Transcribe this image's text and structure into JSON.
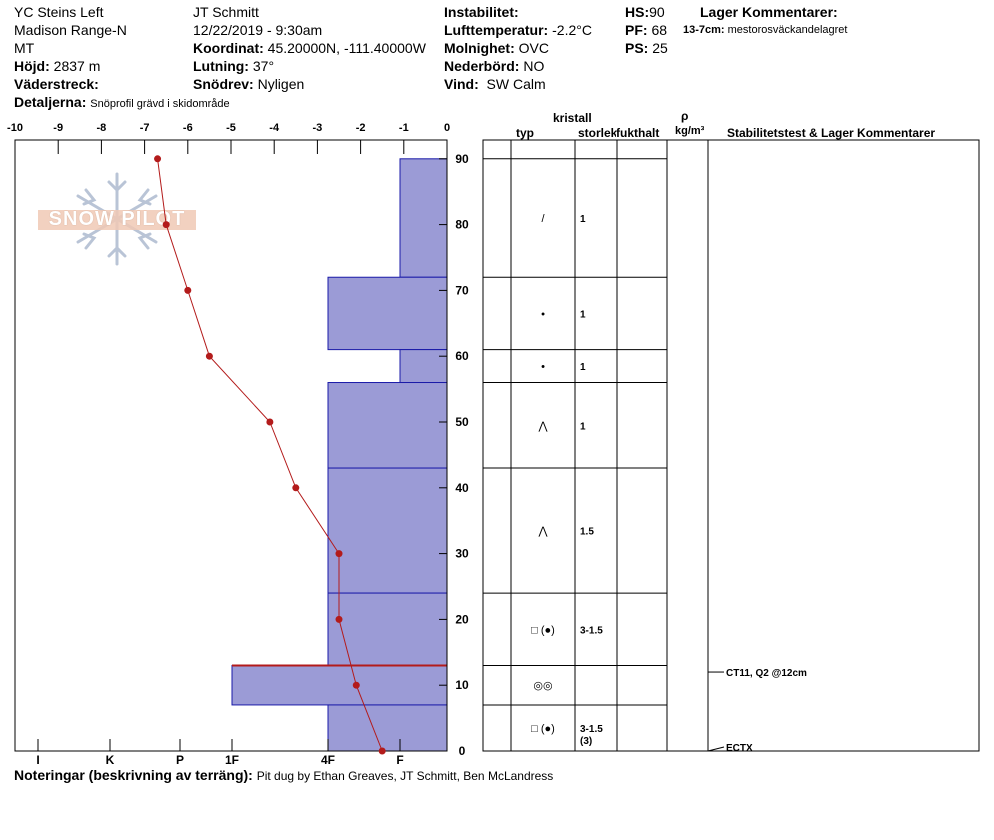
{
  "header": {
    "location": "YC Steins Left",
    "range": "Madison Range-N",
    "state": "MT",
    "elevation_label": "Höjd:",
    "elevation": "2837 m",
    "aspect_label": "Väderstreck:",
    "aspect": "",
    "details_label": "Detaljerna:",
    "details": "Snöprofil grävd i skidområde",
    "observer": "JT Schmitt",
    "datetime": "12/22/2019 - 9:30am",
    "coord_label": "Koordinat:",
    "coord": "45.20000N, -111.40000W",
    "slope_label": "Lutning:",
    "slope": "37°",
    "drift_label": "Snödrev:",
    "drift": "Nyligen",
    "instability_label": "Instabilitet:",
    "instability": "",
    "airtemp_label": "Lufttemperatur:",
    "airtemp": "-2.2°C",
    "sky_label": "Molnighet:",
    "sky": "OVC",
    "precip_label": "Nederbörd:",
    "precip": "NO",
    "wind_label": "Vind:",
    "wind": "SW Calm",
    "hs_label": "HS:",
    "hs": "90",
    "pf_label": "PF:",
    "pf": "68",
    "ps_label": "PS:",
    "ps": "25",
    "layer_comments_label": "Lager Kommentarer:",
    "layer_comment_key": "13-7cm:",
    "layer_comment_text": "mestorosväckandelagret"
  },
  "footer": {
    "notes_label": "Noteringar (beskrivning av terräng):",
    "notes": "Pit dug by Ethan Greaves, JT Schmitt, Ben McLandress"
  },
  "logo_text": "SNOW PILOT",
  "columns": {
    "crystal": "kristall",
    "type": "typ",
    "size": "storlek",
    "moisture": "fukthalt",
    "rho": "ρ",
    "density_unit": "kg/m³",
    "stability": "Stabilitetstest & Lager Kommentarer"
  },
  "colors": {
    "hardness_fill": "#9b9bd6",
    "hardness_stroke": "#1a1aa8",
    "temp_line": "#b31b1b",
    "critical_layer": "#b31b1b"
  },
  "chart_data": {
    "type": "snow-profile",
    "temp_axis": {
      "ticks": [
        "-10",
        "-9",
        "-8",
        "-7",
        "-6",
        "-5",
        "-4",
        "-3",
        "-2",
        "-1",
        "0"
      ],
      "range": [
        -10,
        0
      ]
    },
    "depth_axis": {
      "ticks": [
        "90",
        "80",
        "70",
        "60",
        "50",
        "40",
        "30",
        "20",
        "10",
        "0"
      ],
      "range": [
        0,
        95
      ]
    },
    "hardness_axis": {
      "labels": [
        "I",
        "K",
        "P",
        "1F",
        "4F",
        "F"
      ]
    },
    "temperature_profile": [
      {
        "depth": 90,
        "temp": -6.7
      },
      {
        "depth": 80,
        "temp": -6.5
      },
      {
        "depth": 70,
        "temp": -6.0
      },
      {
        "depth": 60,
        "temp": -5.5
      },
      {
        "depth": 50,
        "temp": -4.1
      },
      {
        "depth": 40,
        "temp": -3.5
      },
      {
        "depth": 30,
        "temp": -2.5
      },
      {
        "depth": 20,
        "temp": -2.5
      },
      {
        "depth": 10,
        "temp": -2.1
      },
      {
        "depth": 0,
        "temp": -1.5
      }
    ],
    "layers": [
      {
        "top": 90,
        "bottom": 72,
        "hardness": "F",
        "crystal": "/",
        "size": "1",
        "size2": ""
      },
      {
        "top": 72,
        "bottom": 61,
        "hardness": "4F",
        "crystal": "•",
        "size": "1",
        "size2": ""
      },
      {
        "top": 61,
        "bottom": 56,
        "hardness": "F",
        "crystal": "•",
        "size": "1",
        "size2": ""
      },
      {
        "top": 56,
        "bottom": 43,
        "hardness": "4F",
        "crystal": "⋀",
        "size": "1",
        "size2": ""
      },
      {
        "top": 43,
        "bottom": 24,
        "hardness": "4F",
        "crystal": "⋀",
        "size": "1.5",
        "size2": ""
      },
      {
        "top": 24,
        "bottom": 13,
        "hardness": "4F",
        "crystal": "□ (●)",
        "size": "3-1.5",
        "size2": ""
      },
      {
        "top": 13,
        "bottom": 7,
        "hardness": "1F",
        "crystal": "◎◎",
        "size": "",
        "size2": ""
      },
      {
        "top": 7,
        "bottom": 0,
        "hardness": "4F",
        "crystal": "□ (●)",
        "size": "3-1.5",
        "size2": "(3)"
      }
    ],
    "critical_layer_depth": 13,
    "stability_tests": [
      {
        "depth": 12,
        "text": "CT11, Q2 @12cm"
      },
      {
        "depth": 0,
        "text": "ECTX"
      }
    ]
  }
}
